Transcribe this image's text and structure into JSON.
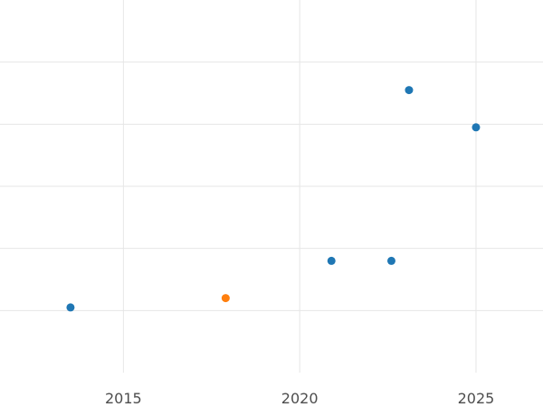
{
  "chart_data": {
    "type": "scatter",
    "title": "",
    "xlabel": "",
    "ylabel": "",
    "x_ticks": [
      "2015",
      "2020",
      "2025"
    ],
    "xlim": [
      2011.5,
      2026.9
    ],
    "ylim": [
      0,
      6
    ],
    "grid": true,
    "legend": "none",
    "series": [
      {
        "color": "#1f77b4",
        "points": [
          {
            "x": 2013.5,
            "y": 1.05
          },
          {
            "x": 2020.9,
            "y": 1.8
          },
          {
            "x": 2022.6,
            "y": 1.8
          },
          {
            "x": 2023.1,
            "y": 4.55
          },
          {
            "x": 2025.0,
            "y": 3.95
          }
        ]
      },
      {
        "color": "#ff7f0e",
        "points": [
          {
            "x": 2017.9,
            "y": 1.2
          }
        ]
      }
    ]
  }
}
